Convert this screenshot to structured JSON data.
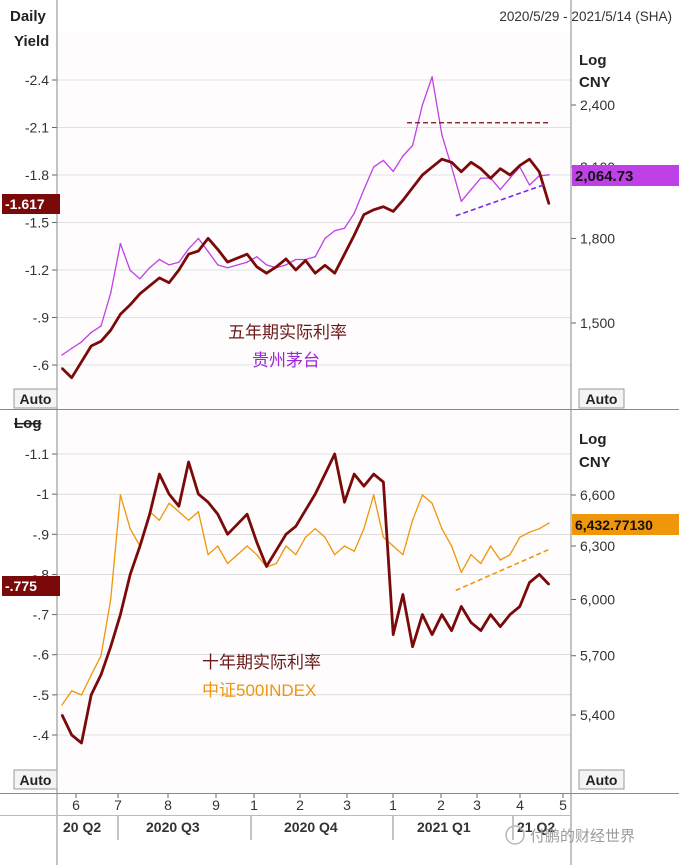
{
  "header": {
    "frequency": "Daily",
    "date_range": "2020/5/29 - 2021/5/14 (SHA)"
  },
  "panels": {
    "top": {
      "left_axis_title": "Yield",
      "right_axis_title_1": "Log",
      "right_axis_title_2": "CNY",
      "left_auto_label": "Auto",
      "right_auto_label": "Auto",
      "left_value_tag": "-1.617",
      "right_value_tag": "2,064.73",
      "label_series1": "五年期实际利率",
      "label_series2": "贵州茅台"
    },
    "bottom": {
      "left_axis_title": "Log",
      "right_axis_title_1": "Log",
      "right_axis_title_2": "CNY",
      "left_auto_label": "Auto",
      "right_auto_label": "Auto",
      "left_value_tag": "-.775",
      "right_value_tag": "6,432.77130",
      "label_series1": "十年期实际利率",
      "label_series2": "中证500INDEX"
    }
  },
  "x_axis": {
    "month_labels": [
      "6",
      "7",
      "8",
      "9",
      "1",
      "2",
      "3",
      "1",
      "2",
      "3",
      "4",
      "5"
    ],
    "quarter_labels": [
      "20 Q2",
      "2020 Q3",
      "2020 Q4",
      "2021 Q1",
      "21 Q2"
    ]
  },
  "watermark": "付鹏的财经世界",
  "colors": {
    "yield": "#7a0a0a",
    "moutai": "#c040e8",
    "csi500": "#f0960a",
    "tag_yield": "#7a0a0a",
    "tag_moutai": "#c040e8",
    "tag_csi500": "#f0960a",
    "grid": "#c8c8c8"
  },
  "chart_data": [
    {
      "type": "line",
      "panel": "top",
      "x_range": [
        "2020-05-29",
        "2021-05-14"
      ],
      "left_axis": {
        "label": "Yield",
        "reversed": true,
        "ticks": [
          -2.4,
          -2.1,
          -1.8,
          -1.5,
          -1.2,
          -0.9,
          -0.6
        ],
        "tick_labels": [
          "-2.4",
          "-2.1",
          "-1.8",
          "-1.5",
          "-1.2",
          "-.9",
          "-.6"
        ],
        "range": [
          -0.5,
          -2.6
        ]
      },
      "right_axis": {
        "label": "Log CNY",
        "scale": "log",
        "ticks": [
          1500,
          1800,
          2100,
          2400
        ],
        "tick_labels": [
          "1,500",
          "1,800",
          "2,100",
          "2,400"
        ],
        "range": [
          1330,
          2580
        ]
      },
      "series": [
        {
          "name": "五年期实际利率",
          "axis": "left",
          "color": "#7a0a0a",
          "last": -1.617,
          "points": [
            [
              "2020-05-29",
              -0.58
            ],
            [
              "2020-06-05",
              -0.52
            ],
            [
              "2020-06-12",
              -0.62
            ],
            [
              "2020-06-19",
              -0.72
            ],
            [
              "2020-06-26",
              -0.75
            ],
            [
              "2020-07-03",
              -0.82
            ],
            [
              "2020-07-10",
              -0.92
            ],
            [
              "2020-07-17",
              -0.98
            ],
            [
              "2020-07-24",
              -1.05
            ],
            [
              "2020-07-31",
              -1.1
            ],
            [
              "2020-08-07",
              -1.15
            ],
            [
              "2020-08-14",
              -1.12
            ],
            [
              "2020-08-21",
              -1.2
            ],
            [
              "2020-08-28",
              -1.3
            ],
            [
              "2020-09-04",
              -1.32
            ],
            [
              "2020-09-11",
              -1.4
            ],
            [
              "2020-09-18",
              -1.33
            ],
            [
              "2020-09-25",
              -1.25
            ],
            [
              "2020-10-09",
              -1.3
            ],
            [
              "2020-10-16",
              -1.22
            ],
            [
              "2020-10-23",
              -1.18
            ],
            [
              "2020-10-30",
              -1.22
            ],
            [
              "2020-11-06",
              -1.27
            ],
            [
              "2020-11-13",
              -1.2
            ],
            [
              "2020-11-20",
              -1.26
            ],
            [
              "2020-11-27",
              -1.18
            ],
            [
              "2020-12-04",
              -1.23
            ],
            [
              "2020-12-11",
              -1.18
            ],
            [
              "2020-12-18",
              -1.3
            ],
            [
              "2020-12-25",
              -1.42
            ],
            [
              "2021-01-01",
              -1.55
            ],
            [
              "2021-01-08",
              -1.58
            ],
            [
              "2021-01-15",
              -1.6
            ],
            [
              "2021-01-22",
              -1.57
            ],
            [
              "2021-01-29",
              -1.64
            ],
            [
              "2021-02-05",
              -1.72
            ],
            [
              "2021-02-12",
              -1.8
            ],
            [
              "2021-02-19",
              -1.85
            ],
            [
              "2021-02-26",
              -1.9
            ],
            [
              "2021-03-05",
              -1.88
            ],
            [
              "2021-03-12",
              -1.82
            ],
            [
              "2021-03-19",
              -1.88
            ],
            [
              "2021-03-26",
              -1.84
            ],
            [
              "2021-04-02",
              -1.78
            ],
            [
              "2021-04-09",
              -1.84
            ],
            [
              "2021-04-16",
              -1.8
            ],
            [
              "2021-04-23",
              -1.86
            ],
            [
              "2021-04-30",
              -1.9
            ],
            [
              "2021-05-07",
              -1.82
            ],
            [
              "2021-05-14",
              -1.617
            ]
          ]
        },
        {
          "name": "贵州茅台",
          "axis": "right",
          "color": "#c040e8",
          "last": 2064.73,
          "points": [
            [
              "2020-05-29",
              1400
            ],
            [
              "2020-06-05",
              1420
            ],
            [
              "2020-06-12",
              1440
            ],
            [
              "2020-06-19",
              1470
            ],
            [
              "2020-06-26",
              1490
            ],
            [
              "2020-07-03",
              1600
            ],
            [
              "2020-07-10",
              1780
            ],
            [
              "2020-07-17",
              1680
            ],
            [
              "2020-07-24",
              1650
            ],
            [
              "2020-07-31",
              1690
            ],
            [
              "2020-08-07",
              1720
            ],
            [
              "2020-08-14",
              1700
            ],
            [
              "2020-08-21",
              1710
            ],
            [
              "2020-08-28",
              1760
            ],
            [
              "2020-09-04",
              1800
            ],
            [
              "2020-09-11",
              1750
            ],
            [
              "2020-09-18",
              1700
            ],
            [
              "2020-09-25",
              1690
            ],
            [
              "2020-10-09",
              1710
            ],
            [
              "2020-10-16",
              1730
            ],
            [
              "2020-10-23",
              1700
            ],
            [
              "2020-10-30",
              1690
            ],
            [
              "2020-11-06",
              1700
            ],
            [
              "2020-11-13",
              1720
            ],
            [
              "2020-11-20",
              1720
            ],
            [
              "2020-11-27",
              1730
            ],
            [
              "2020-12-04",
              1800
            ],
            [
              "2020-12-11",
              1830
            ],
            [
              "2020-12-18",
              1840
            ],
            [
              "2020-12-25",
              1900
            ],
            [
              "2021-01-01",
              2000
            ],
            [
              "2021-01-08",
              2100
            ],
            [
              "2021-01-15",
              2130
            ],
            [
              "2021-01-22",
              2080
            ],
            [
              "2021-01-29",
              2150
            ],
            [
              "2021-02-05",
              2200
            ],
            [
              "2021-02-12",
              2400
            ],
            [
              "2021-02-19",
              2550
            ],
            [
              "2021-02-26",
              2250
            ],
            [
              "2021-03-05",
              2100
            ],
            [
              "2021-03-12",
              1950
            ],
            [
              "2021-03-19",
              2000
            ],
            [
              "2021-03-26",
              2050
            ],
            [
              "2021-04-02",
              2050
            ],
            [
              "2021-04-09",
              2000
            ],
            [
              "2021-04-16",
              2050
            ],
            [
              "2021-04-23",
              2100
            ],
            [
              "2021-04-30",
              2020
            ],
            [
              "2021-05-07",
              2060
            ],
            [
              "2021-05-14",
              2064.73
            ]
          ]
        }
      ],
      "annotations": [
        {
          "kind": "horizontal-dashed",
          "axis": "right",
          "value": 2310,
          "from": "2021-02-01",
          "to": "2021-05-14"
        },
        {
          "kind": "trendline-dashed",
          "axis": "right",
          "from": [
            "2021-03-08",
            1890
          ],
          "to": [
            "2021-05-10",
            2020
          ]
        }
      ]
    },
    {
      "type": "line",
      "panel": "bottom",
      "x_range": [
        "2020-05-29",
        "2021-05-14"
      ],
      "left_axis": {
        "label": "Log",
        "reversed": true,
        "ticks": [
          -1.1,
          -1.0,
          -0.9,
          -0.8,
          -0.7,
          -0.6,
          -0.5,
          -0.4
        ],
        "tick_labels": [
          "-1.1",
          "-1",
          "-.9",
          "-.8",
          "-.7",
          "-.6",
          "-.5",
          "-.4"
        ],
        "range": [
          -0.3,
          -1.2
        ]
      },
      "right_axis": {
        "label": "Log CNY",
        "scale": "log",
        "ticks": [
          5400,
          5700,
          6000,
          6300,
          6600
        ],
        "tick_labels": [
          "5,400",
          "5,700",
          "6,000",
          "6,300",
          "6,600"
        ],
        "range": [
          5200,
          6800
        ]
      },
      "series": [
        {
          "name": "十年期实际利率",
          "axis": "left",
          "color": "#7a0a0a",
          "last": -0.775,
          "points": [
            [
              "2020-05-29",
              -0.45
            ],
            [
              "2020-06-05",
              -0.4
            ],
            [
              "2020-06-12",
              -0.38
            ],
            [
              "2020-06-19",
              -0.5
            ],
            [
              "2020-06-26",
              -0.55
            ],
            [
              "2020-07-03",
              -0.62
            ],
            [
              "2020-07-10",
              -0.7
            ],
            [
              "2020-07-17",
              -0.8
            ],
            [
              "2020-07-24",
              -0.87
            ],
            [
              "2020-07-31",
              -0.95
            ],
            [
              "2020-08-07",
              -1.05
            ],
            [
              "2020-08-14",
              -1.0
            ],
            [
              "2020-08-21",
              -0.97
            ],
            [
              "2020-08-28",
              -1.08
            ],
            [
              "2020-09-04",
              -1.0
            ],
            [
              "2020-09-11",
              -0.98
            ],
            [
              "2020-09-18",
              -0.95
            ],
            [
              "2020-09-25",
              -0.9
            ],
            [
              "2020-10-09",
              -0.95
            ],
            [
              "2020-10-16",
              -0.88
            ],
            [
              "2020-10-23",
              -0.82
            ],
            [
              "2020-10-30",
              -0.86
            ],
            [
              "2020-11-06",
              -0.9
            ],
            [
              "2020-11-13",
              -0.92
            ],
            [
              "2020-11-20",
              -0.96
            ],
            [
              "2020-11-27",
              -1.0
            ],
            [
              "2020-12-04",
              -1.05
            ],
            [
              "2020-12-11",
              -1.1
            ],
            [
              "2020-12-18",
              -0.98
            ],
            [
              "2020-12-25",
              -1.05
            ],
            [
              "2021-01-01",
              -1.02
            ],
            [
              "2021-01-08",
              -1.05
            ],
            [
              "2021-01-15",
              -1.03
            ],
            [
              "2021-01-22",
              -0.65
            ],
            [
              "2021-01-29",
              -0.75
            ],
            [
              "2021-02-05",
              -0.62
            ],
            [
              "2021-02-12",
              -0.7
            ],
            [
              "2021-02-19",
              -0.65
            ],
            [
              "2021-02-26",
              -0.7
            ],
            [
              "2021-03-05",
              -0.66
            ],
            [
              "2021-03-12",
              -0.72
            ],
            [
              "2021-03-19",
              -0.68
            ],
            [
              "2021-03-26",
              -0.66
            ],
            [
              "2021-04-02",
              -0.7
            ],
            [
              "2021-04-09",
              -0.67
            ],
            [
              "2021-04-16",
              -0.7
            ],
            [
              "2021-04-23",
              -0.72
            ],
            [
              "2021-04-30",
              -0.78
            ],
            [
              "2021-05-07",
              -0.8
            ],
            [
              "2021-05-14",
              -0.775
            ]
          ]
        },
        {
          "name": "中证500INDEX",
          "axis": "right",
          "color": "#f0960a",
          "last": 6432.7713,
          "points": [
            [
              "2020-05-29",
              5450
            ],
            [
              "2020-06-05",
              5520
            ],
            [
              "2020-06-12",
              5500
            ],
            [
              "2020-06-19",
              5600
            ],
            [
              "2020-06-26",
              5700
            ],
            [
              "2020-07-03",
              6000
            ],
            [
              "2020-07-10",
              6600
            ],
            [
              "2020-07-17",
              6400
            ],
            [
              "2020-07-24",
              6300
            ],
            [
              "2020-07-31",
              6500
            ],
            [
              "2020-08-07",
              6450
            ],
            [
              "2020-08-14",
              6550
            ],
            [
              "2020-08-21",
              6500
            ],
            [
              "2020-08-28",
              6450
            ],
            [
              "2020-09-04",
              6500
            ],
            [
              "2020-09-11",
              6250
            ],
            [
              "2020-09-18",
              6300
            ],
            [
              "2020-09-25",
              6200
            ],
            [
              "2020-10-09",
              6300
            ],
            [
              "2020-10-16",
              6250
            ],
            [
              "2020-10-23",
              6180
            ],
            [
              "2020-10-30",
              6200
            ],
            [
              "2020-11-06",
              6300
            ],
            [
              "2020-11-13",
              6250
            ],
            [
              "2020-11-20",
              6350
            ],
            [
              "2020-11-27",
              6400
            ],
            [
              "2020-12-04",
              6350
            ],
            [
              "2020-12-11",
              6250
            ],
            [
              "2020-12-18",
              6300
            ],
            [
              "2020-12-25",
              6270
            ],
            [
              "2021-01-01",
              6400
            ],
            [
              "2021-01-08",
              6600
            ],
            [
              "2021-01-15",
              6350
            ],
            [
              "2021-01-22",
              6300
            ],
            [
              "2021-01-29",
              6250
            ],
            [
              "2021-02-05",
              6450
            ],
            [
              "2021-02-12",
              6600
            ],
            [
              "2021-02-19",
              6550
            ],
            [
              "2021-02-26",
              6400
            ],
            [
              "2021-03-05",
              6300
            ],
            [
              "2021-03-12",
              6150
            ],
            [
              "2021-03-19",
              6250
            ],
            [
              "2021-03-26",
              6200
            ],
            [
              "2021-04-02",
              6300
            ],
            [
              "2021-04-09",
              6220
            ],
            [
              "2021-04-16",
              6250
            ],
            [
              "2021-04-23",
              6350
            ],
            [
              "2021-04-30",
              6380
            ],
            [
              "2021-05-07",
              6400
            ],
            [
              "2021-05-14",
              6432.7713
            ]
          ]
        }
      ],
      "annotations": [
        {
          "kind": "trendline-dashed",
          "axis": "right",
          "from": [
            "2021-03-08",
            6050
          ],
          "to": [
            "2021-05-14",
            6280
          ]
        }
      ]
    }
  ]
}
